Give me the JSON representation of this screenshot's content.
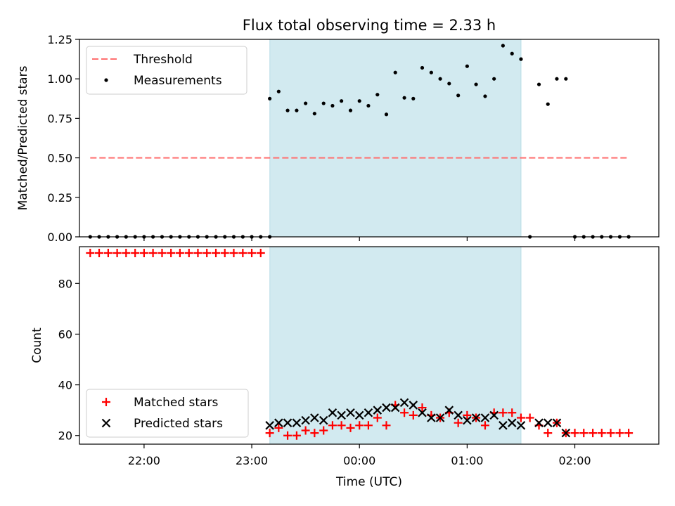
{
  "chart_data": {
    "type": "scatter",
    "title": "Flux total observing time = 2.33 h",
    "xlabel": "Time (UTC)",
    "x_ticks": [
      "22:00",
      "23:00",
      "00:00",
      "01:00",
      "02:00"
    ],
    "x_tick_hours": [
      22,
      23,
      24,
      25,
      26
    ],
    "x_range_hours": [
      21.4,
      26.78
    ],
    "shaded_interval_hours": [
      23.168,
      25.5
    ],
    "shade_color": "#d2eaf0",
    "panels": [
      {
        "ylabel": "Matched/Predicted stars",
        "ylim": [
          0,
          1.25
        ],
        "y_ticks": [
          "0.00",
          "0.25",
          "0.50",
          "0.75",
          "1.00",
          "1.25"
        ],
        "y_tick_values": [
          0,
          0.25,
          0.5,
          0.75,
          1.0,
          1.25
        ],
        "legend_position": "upper-left",
        "series": [
          {
            "name": "Threshold",
            "kind": "dashed-line",
            "color": "#ff7070",
            "x": [
              21.5,
              26.5
            ],
            "y": [
              0.5,
              0.5
            ]
          },
          {
            "name": "Measurements",
            "kind": "dot",
            "color": "#000000",
            "x": [
              21.5,
              21.583,
              21.667,
              21.75,
              21.833,
              21.917,
              22.0,
              22.083,
              22.167,
              22.25,
              22.333,
              22.417,
              22.5,
              22.583,
              22.667,
              22.75,
              22.833,
              22.917,
              23.0,
              23.083,
              23.167,
              23.167,
              23.25,
              23.333,
              23.417,
              23.5,
              23.583,
              23.667,
              23.75,
              23.833,
              23.917,
              24.0,
              24.083,
              24.167,
              24.25,
              24.333,
              24.417,
              24.5,
              24.583,
              24.667,
              24.75,
              24.833,
              24.917,
              25.0,
              25.083,
              25.167,
              25.25,
              25.333,
              25.417,
              25.5,
              25.583,
              25.667,
              25.75,
              25.833,
              25.917,
              26.0,
              26.083,
              26.167,
              26.25,
              26.333,
              26.417,
              26.5
            ],
            "y": [
              0,
              0,
              0,
              0,
              0,
              0,
              0,
              0,
              0,
              0,
              0,
              0,
              0,
              0,
              0,
              0,
              0,
              0,
              0,
              0,
              0,
              0.875,
              0.92,
              0.8,
              0.8,
              0.845,
              0.78,
              0.845,
              0.83,
              0.86,
              0.8,
              0.86,
              0.83,
              0.9,
              0.775,
              1.04,
              0.88,
              0.875,
              1.07,
              1.04,
              1.0,
              0.97,
              0.895,
              1.08,
              0.965,
              0.89,
              1.0,
              1.21,
              1.16,
              1.125,
              0,
              0.965,
              0.84,
              1.0,
              1.0,
              0,
              0,
              0,
              0,
              0,
              0,
              0
            ]
          }
        ]
      },
      {
        "ylabel": "Count",
        "ylim": [
          16.6,
          94.5
        ],
        "y_ticks": [
          "20",
          "40",
          "60",
          "80"
        ],
        "y_tick_values": [
          20,
          40,
          60,
          80
        ],
        "legend_position": "lower-left",
        "series": [
          {
            "name": "Matched stars",
            "kind": "plus",
            "color": "#ff0000",
            "x": [
              21.5,
              21.583,
              21.667,
              21.75,
              21.833,
              21.917,
              22.0,
              22.083,
              22.167,
              22.25,
              22.333,
              22.417,
              22.5,
              22.583,
              22.667,
              22.75,
              22.833,
              22.917,
              23.0,
              23.083,
              23.167,
              23.25,
              23.333,
              23.417,
              23.5,
              23.583,
              23.667,
              23.75,
              23.833,
              23.917,
              24.0,
              24.083,
              24.167,
              24.25,
              24.333,
              24.417,
              24.5,
              24.583,
              24.667,
              24.75,
              24.833,
              24.917,
              25.0,
              25.083,
              25.167,
              25.25,
              25.333,
              25.417,
              25.5,
              25.583,
              25.667,
              25.75,
              25.833,
              25.917,
              26.0,
              26.083,
              26.167,
              26.25,
              26.333,
              26.417,
              26.5
            ],
            "y": [
              92,
              92,
              92,
              92,
              92,
              92,
              92,
              92,
              92,
              92,
              92,
              92,
              92,
              92,
              92,
              92,
              92,
              92,
              92,
              92,
              21,
              23,
              20,
              20,
              22,
              21,
              22,
              24,
              24,
              23,
              24,
              24,
              27,
              24,
              32,
              29,
              28,
              31,
              28,
              27,
              29,
              25,
              28,
              27,
              24,
              29,
              29,
              29,
              27,
              27,
              24,
              21,
              25,
              21,
              21,
              21,
              21,
              21,
              21,
              21,
              21
            ]
          },
          {
            "name": "Predicted stars",
            "kind": "x",
            "color": "#000000",
            "x": [
              23.167,
              23.25,
              23.333,
              23.417,
              23.5,
              23.583,
              23.667,
              23.75,
              23.833,
              23.917,
              24.0,
              24.083,
              24.167,
              24.25,
              24.333,
              24.417,
              24.5,
              24.583,
              24.667,
              24.75,
              24.833,
              24.917,
              25.0,
              25.083,
              25.167,
              25.25,
              25.333,
              25.417,
              25.5,
              25.667,
              25.75,
              25.833,
              25.917
            ],
            "y": [
              24,
              25,
              25,
              25,
              26,
              27,
              26,
              29,
              28,
              29,
              28,
              29,
              30,
              31,
              31,
              33,
              32,
              29,
              27,
              27,
              30,
              28,
              26,
              27,
              27,
              28,
              24,
              25,
              24,
              25,
              25,
              25,
              21
            ]
          }
        ]
      }
    ]
  }
}
